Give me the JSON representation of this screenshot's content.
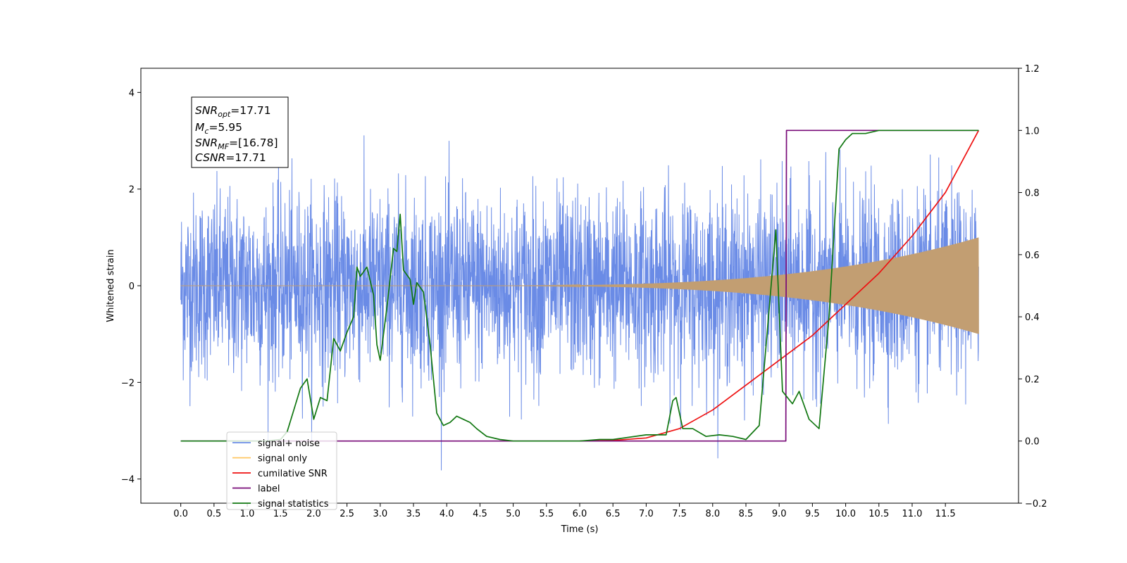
{
  "chart_data": {
    "type": "line",
    "xlabel": "Time (s)",
    "ylabel": "Whitened strain",
    "xlim": [
      -0.6,
      12.6
    ],
    "ylim": [
      -4.5,
      4.5
    ],
    "y2lim": [
      -0.2,
      1.2
    ],
    "x_ticks": [
      "0.0",
      "0.5",
      "1.0",
      "1.5",
      "2.0",
      "2.5",
      "3.0",
      "3.5",
      "4.0",
      "4.5",
      "5.0",
      "5.5",
      "6.0",
      "6.5",
      "7.0",
      "7.5",
      "8.0",
      "8.5",
      "9.0",
      "9.5",
      "10.0",
      "10.5",
      "11.0",
      "11.5"
    ],
    "y_ticks": [
      "4",
      "2",
      "0",
      "−2",
      "−4"
    ],
    "y2_ticks": [
      "1.2",
      "1.0",
      "0.8",
      "0.6",
      "0.4",
      "0.2",
      "0.0",
      "−0.2"
    ],
    "grid": false,
    "legend_position": "lower-left",
    "annotation": {
      "lines": [
        {
          "sym": "SNR",
          "sub": "opt",
          "rest": "=17.71"
        },
        {
          "sym": "M",
          "sub": "c",
          "rest": "=5.95"
        },
        {
          "sym": "SNR",
          "sub": "MF",
          "rest": "=[16.78]"
        },
        {
          "sym": "CSNR",
          "sub": "",
          "rest": "=17.71"
        }
      ]
    },
    "series": [
      {
        "name": "signal+ noise",
        "color": "#6a8be6",
        "axis": "left",
        "kind": "noise",
        "x_range": [
          0,
          12.0
        ],
        "approx_peak": 4.1
      },
      {
        "name": "signal only",
        "color": "#ffc864",
        "axis": "left",
        "kind": "chirp",
        "x_range": [
          0,
          12.0
        ],
        "final_amplitude": 1.0,
        "onset": 6.5
      },
      {
        "name": "cumilative SNR",
        "color": "#ee1111",
        "axis": "right",
        "x": [
          6.0,
          6.5,
          7.0,
          7.5,
          8.0,
          8.5,
          9.0,
          9.5,
          10.0,
          10.5,
          11.0,
          11.5,
          12.0
        ],
        "y": [
          0.0,
          0.002,
          0.01,
          0.04,
          0.1,
          0.18,
          0.26,
          0.34,
          0.44,
          0.54,
          0.66,
          0.8,
          1.0
        ]
      },
      {
        "name": "label",
        "color": "#780a78",
        "axis": "right",
        "x": [
          0.0,
          9.1,
          9.11,
          12.0
        ],
        "y": [
          0.0,
          0.0,
          1.0,
          1.0
        ]
      },
      {
        "name": "signal statistics",
        "color": "#117711",
        "axis": "right",
        "x": [
          0.0,
          1.3,
          1.5,
          1.6,
          1.7,
          1.8,
          1.9,
          2.0,
          2.1,
          2.2,
          2.3,
          2.4,
          2.5,
          2.6,
          2.65,
          2.7,
          2.8,
          2.9,
          2.95,
          3.0,
          3.1,
          3.2,
          3.25,
          3.3,
          3.35,
          3.45,
          3.5,
          3.55,
          3.65,
          3.75,
          3.85,
          3.95,
          4.05,
          4.15,
          4.25,
          4.35,
          4.45,
          4.6,
          4.8,
          5.0,
          5.5,
          6.0,
          6.3,
          6.5,
          7.0,
          7.3,
          7.4,
          7.45,
          7.55,
          7.7,
          7.9,
          8.1,
          8.3,
          8.5,
          8.7,
          8.8,
          8.95,
          9.05,
          9.2,
          9.3,
          9.45,
          9.6,
          9.75,
          9.9,
          10.0,
          10.1,
          10.3,
          10.5,
          11.0,
          12.0
        ],
        "y": [
          0.0,
          0.0,
          0.005,
          0.03,
          0.1,
          0.17,
          0.2,
          0.07,
          0.14,
          0.13,
          0.33,
          0.29,
          0.35,
          0.4,
          0.56,
          0.53,
          0.56,
          0.47,
          0.31,
          0.26,
          0.43,
          0.62,
          0.61,
          0.73,
          0.55,
          0.52,
          0.44,
          0.51,
          0.48,
          0.31,
          0.09,
          0.05,
          0.06,
          0.08,
          0.07,
          0.06,
          0.04,
          0.015,
          0.005,
          0.0,
          0.0,
          0.0,
          0.005,
          0.005,
          0.02,
          0.02,
          0.13,
          0.14,
          0.04,
          0.04,
          0.015,
          0.02,
          0.015,
          0.005,
          0.05,
          0.3,
          0.68,
          0.16,
          0.12,
          0.16,
          0.07,
          0.04,
          0.4,
          0.94,
          0.97,
          0.99,
          0.99,
          1.0,
          1.0,
          1.0
        ]
      }
    ]
  }
}
